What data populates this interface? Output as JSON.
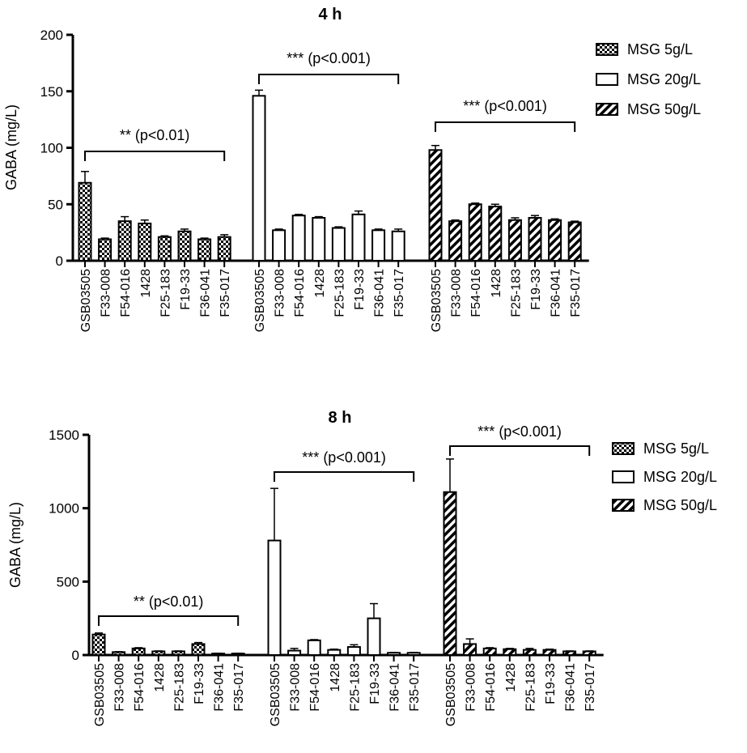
{
  "chart_data": [
    {
      "type": "bar",
      "title": "4 h",
      "ylabel": "GABA (mg/L)",
      "xlabel": "",
      "ylim": [
        0,
        200
      ],
      "yticks": [
        0,
        50,
        100,
        150,
        200
      ],
      "categories": [
        "GSB03505",
        "F33-008",
        "F54-016",
        "1428",
        "F25-183",
        "F19-33",
        "F36-041",
        "F35-017"
      ],
      "series": [
        {
          "name": "MSG 5g/L",
          "pattern": "checker",
          "values": [
            69,
            19,
            35,
            33,
            21,
            26,
            19,
            21
          ],
          "errors": [
            10,
            1,
            4,
            3,
            1,
            2,
            1,
            2
          ]
        },
        {
          "name": "MSG 20g/L",
          "pattern": "open",
          "values": [
            146,
            27,
            40,
            38,
            29,
            41,
            27,
            26
          ],
          "errors": [
            5,
            1,
            1,
            1,
            1,
            3,
            1,
            2
          ]
        },
        {
          "name": "MSG 50g/L",
          "pattern": "stripe",
          "values": [
            98,
            35,
            50,
            48,
            36,
            38,
            36,
            34
          ],
          "errors": [
            4,
            1,
            1,
            2,
            2,
            2,
            1,
            1
          ]
        }
      ],
      "significance": [
        "** (p<0.01)",
        "*** (p<0.001)",
        "*** (p<0.001)"
      ],
      "legend_position": "top-right"
    },
    {
      "type": "bar",
      "title": "8 h",
      "ylabel": "GABA (mg/L)",
      "xlabel": "",
      "ylim": [
        0,
        1500
      ],
      "yticks": [
        0,
        500,
        1000,
        1500
      ],
      "categories": [
        "GSB03505",
        "F33-008",
        "F54-016",
        "1428",
        "F25-183",
        "F19-33",
        "F36-041",
        "F35-017"
      ],
      "series": [
        {
          "name": "MSG 5g/L",
          "pattern": "checker",
          "values": [
            140,
            20,
            45,
            25,
            25,
            75,
            10,
            10
          ],
          "errors": [
            10,
            3,
            5,
            3,
            3,
            10,
            2,
            2
          ]
        },
        {
          "name": "MSG 20g/L",
          "pattern": "open",
          "values": [
            780,
            30,
            100,
            35,
            55,
            250,
            15,
            15
          ],
          "errors": [
            355,
            15,
            5,
            5,
            15,
            100,
            3,
            3
          ]
        },
        {
          "name": "MSG 50g/L",
          "pattern": "stripe",
          "values": [
            1110,
            75,
            45,
            40,
            35,
            35,
            25,
            25
          ],
          "errors": [
            225,
            35,
            5,
            5,
            10,
            5,
            3,
            3
          ]
        }
      ],
      "significance": [
        "** (p<0.01)",
        "*** (p<0.001)",
        "*** (p<0.001)"
      ],
      "legend_position": "right"
    }
  ]
}
